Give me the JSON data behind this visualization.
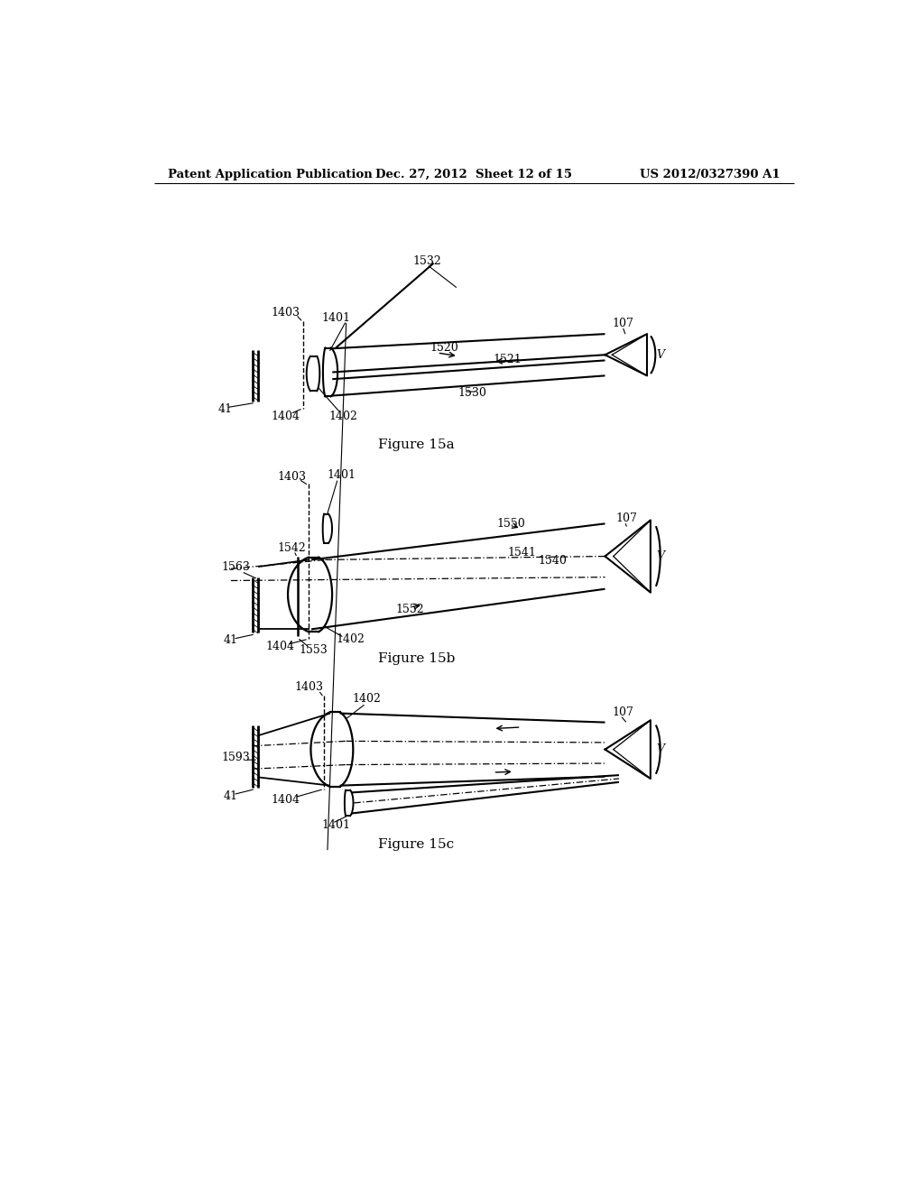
{
  "bg_color": "#ffffff",
  "line_color": "#000000",
  "header_left": "Patent Application Publication",
  "header_mid": "Dec. 27, 2012  Sheet 12 of 15",
  "header_right": "US 2012/0327390 A1",
  "fig15a_caption": "Figure 15a",
  "fig15b_caption": "Figure 15b",
  "fig15c_caption": "Figure 15c"
}
